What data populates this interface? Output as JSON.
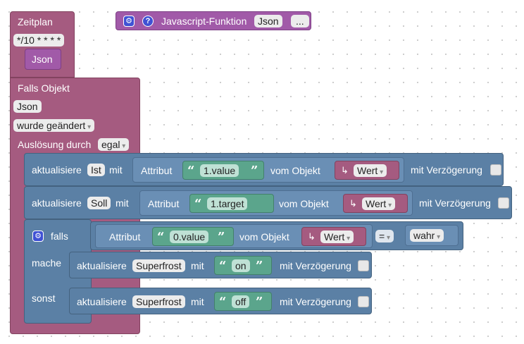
{
  "schedule_block": {
    "title": "Zeitplan",
    "cron": "*/10 * * * *",
    "value": "Json"
  },
  "function_block": {
    "label": "Javascript-Funktion",
    "name": "Json",
    "more": "..."
  },
  "trigger_block": {
    "title": "Falls Objekt",
    "object": "Json",
    "condition": "wurde geändert",
    "trigger_label": "Auslösung durch",
    "trigger_value": "egal"
  },
  "update_ist": {
    "prefix": "aktualisiere",
    "target": "Ist",
    "with": "mit",
    "attr_label": "Attribut",
    "attr_value": "1.value",
    "from_label": "vom Objekt",
    "source": "Wert",
    "delay_label": "mit Verzögerung"
  },
  "update_soll": {
    "prefix": "aktualisiere",
    "target": "Soll",
    "with": "mit",
    "attr_label": "Attribut",
    "attr_value": "1.target",
    "from_label": "vom Objekt",
    "source": "Wert",
    "delay_label": "mit Verzögerung"
  },
  "if_block": {
    "if_label": "falls",
    "then_label": "mache",
    "else_label": "sonst",
    "attr_label": "Attribut",
    "attr_value": "0.value",
    "from_label": "vom Objekt",
    "source": "Wert",
    "operator": "=",
    "compare_value": "wahr"
  },
  "then_update": {
    "prefix": "aktualisiere",
    "target": "Superfrost",
    "with": "mit",
    "value": "on",
    "delay_label": "mit Verzögerung"
  },
  "else_update": {
    "prefix": "aktualisiere",
    "target": "Superfrost",
    "with": "mit",
    "value": "off",
    "delay_label": "mit Verzögerung"
  }
}
